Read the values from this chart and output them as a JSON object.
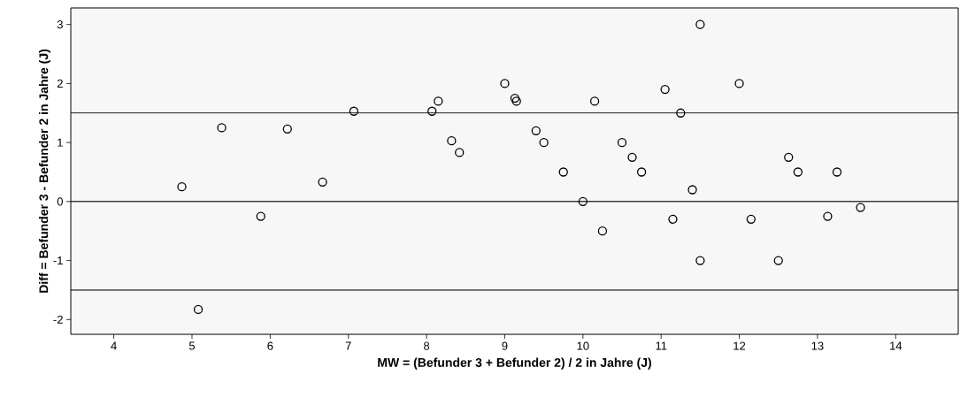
{
  "chart_data": {
    "type": "scatter",
    "xlabel": "MW = (Befunder 3 + Befunder 2) / 2 in Jahre (J)",
    "ylabel": "Diff = Befunder 3 - Befunder 2 in Jahre (J)",
    "x": [
      4.87,
      5.08,
      5.38,
      5.88,
      6.22,
      6.67,
      7.07,
      8.07,
      8.15,
      8.32,
      8.42,
      9.0,
      9.13,
      9.15,
      9.4,
      9.5,
      9.75,
      10.0,
      10.15,
      10.25,
      10.5,
      10.63,
      10.75,
      11.05,
      11.15,
      11.25,
      11.4,
      11.5,
      11.5,
      12.0,
      12.15,
      12.5,
      12.63,
      12.75,
      13.13,
      13.25,
      13.55
    ],
    "series": [
      {
        "color": "#000000",
        "values": [
          0.25,
          -1.83,
          1.25,
          -0.25,
          1.23,
          0.33,
          1.53,
          1.53,
          1.7,
          1.03,
          0.83,
          2.0,
          1.75,
          1.7,
          1.2,
          1.0,
          0.5,
          0.0,
          1.7,
          -0.5,
          1.0,
          0.75,
          0.5,
          1.9,
          -0.3,
          1.5,
          0.2,
          3.0,
          -1.0,
          2.0,
          -0.3,
          -1.0,
          0.75,
          0.5,
          -0.25,
          0.5,
          -0.1
        ]
      }
    ],
    "marker": "circle",
    "xlim": [
      3.45,
      14.8
    ],
    "ylim": [
      -2.25,
      3.28
    ],
    "xticks": [
      4,
      5,
      6,
      7,
      8,
      9,
      10,
      11,
      12,
      13,
      14
    ],
    "yticks": [
      -2,
      -1,
      0,
      1,
      2,
      3
    ],
    "ref_lines": [
      {
        "axis": "y",
        "value": 1.5,
        "color": "#000000"
      },
      {
        "axis": "y",
        "value": 0,
        "color": "#000000"
      },
      {
        "axis": "y",
        "value": -1.5,
        "color": "#000000"
      }
    ],
    "grid": false
  }
}
